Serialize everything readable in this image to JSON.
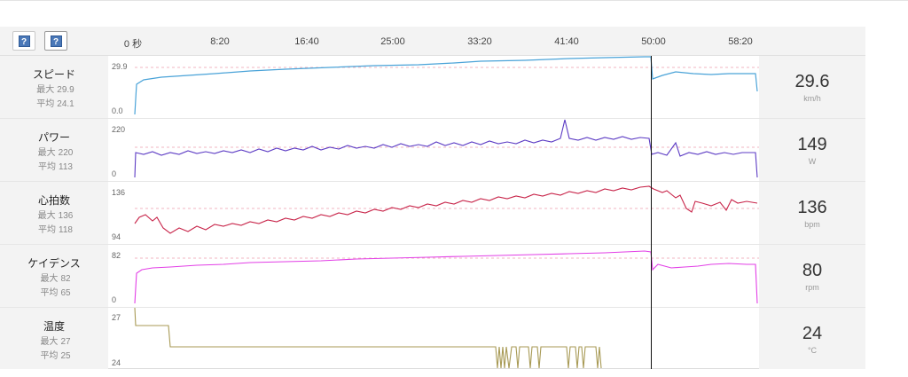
{
  "toolbar": {
    "buttons": [
      {
        "label": "?"
      },
      {
        "label": "?"
      }
    ],
    "time_ticks": [
      "0 秒",
      "8:20",
      "16:40",
      "25:00",
      "33:20",
      "41:40",
      "50:00",
      "58:20"
    ]
  },
  "metrics": [
    {
      "name": "スピード",
      "max_label": "最大",
      "max": "29.9",
      "avg_label": "平均",
      "avg": "24.1",
      "axis_top": "29.9",
      "axis_bottom": "0.0",
      "value": "29.6",
      "unit": "km/h",
      "color": "#4aa3d8"
    },
    {
      "name": "パワー",
      "max_label": "最大",
      "max": "220",
      "avg_label": "平均",
      "avg": "113",
      "axis_top": "220",
      "axis_bottom": "0",
      "value": "149",
      "unit": "W",
      "color": "#5c3bc4"
    },
    {
      "name": "心拍数",
      "max_label": "最大",
      "max": "136",
      "avg_label": "平均",
      "avg": "118",
      "axis_top": "136",
      "axis_bottom": "94",
      "value": "136",
      "unit": "bpm",
      "color": "#c8254a"
    },
    {
      "name": "ケイデンス",
      "max_label": "最大",
      "max": "82",
      "avg_label": "平均",
      "avg": "65",
      "axis_top": "82",
      "axis_bottom": "0",
      "value": "80",
      "unit": "rpm",
      "color": "#e23fe6"
    },
    {
      "name": "温度",
      "max_label": "最大",
      "max": "27",
      "avg_label": "平均",
      "avg": "25",
      "axis_top": "27",
      "axis_bottom": "24",
      "value": "24",
      "unit": "°C",
      "color": "#a89a55"
    }
  ]
}
